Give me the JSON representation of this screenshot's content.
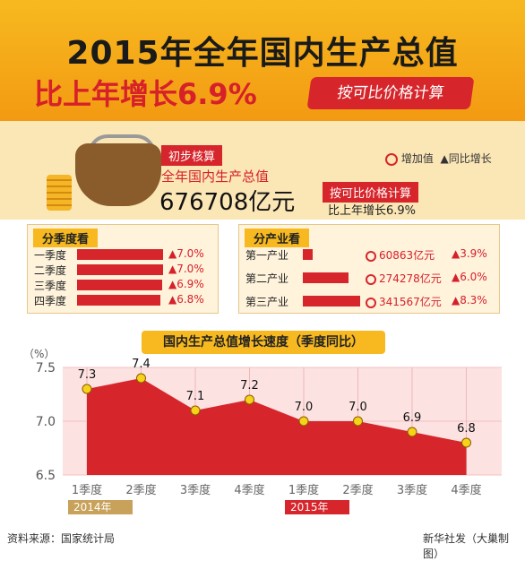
{
  "header": {
    "title_line1": "2015年全年国内生产总值",
    "title_line2": "比上年增长6.9%",
    "price_tag": "按可比价格计算"
  },
  "summary": {
    "prelim_label": "初步核算",
    "gdp_label": "全年国内生产总值",
    "gdp_value": "676708亿元",
    "basis_label": "按可比价格计算",
    "growth_text": "比上年增长6.9%",
    "legend_added": "增加值",
    "legend_growth": "▲同比增长"
  },
  "quarters": {
    "title": "分季度看",
    "items": [
      {
        "label": "一季度",
        "growth": "▲7.0%",
        "value": 7.0
      },
      {
        "label": "二季度",
        "growth": "▲7.0%",
        "value": 7.0
      },
      {
        "label": "三季度",
        "growth": "▲6.9%",
        "value": 6.9
      },
      {
        "label": "四季度",
        "growth": "▲6.8%",
        "value": 6.8
      }
    ]
  },
  "industries": {
    "title": "分产业看",
    "items": [
      {
        "label": "第一产业",
        "amount": "60863亿元",
        "growth": "▲3.9%",
        "value": 60863
      },
      {
        "label": "第二产业",
        "amount": "274278亿元",
        "growth": "▲6.0%",
        "value": 274278
      },
      {
        "label": "第三产业",
        "amount": "341567亿元",
        "growth": "▲8.3%",
        "value": 341567
      }
    ]
  },
  "chart_data": {
    "type": "area",
    "title": "国内生产总值增长速度（季度同比）",
    "ylabel": "（%）",
    "ylim": [
      6.5,
      7.5
    ],
    "yticks": [
      "7.5",
      "7.0",
      "6.5"
    ],
    "categories": [
      "1季度",
      "2季度",
      "3季度",
      "4季度",
      "1季度",
      "2季度",
      "3季度",
      "4季度"
    ],
    "values": [
      7.3,
      7.4,
      7.1,
      7.2,
      7.0,
      7.0,
      6.9,
      6.8
    ],
    "data_labels": [
      "7.3",
      "7.4",
      "7.1",
      "7.2",
      "7.0",
      "7.0",
      "6.9",
      "6.8"
    ],
    "year_groups": [
      "2014年",
      "2015年"
    ],
    "colors": {
      "fill": "#d6262c",
      "marker": "#f7d21a",
      "grid": "#f3c1c1"
    }
  },
  "footer": {
    "source": "资料来源：国家统计局",
    "credit": "新华社发（大巢制图）"
  }
}
